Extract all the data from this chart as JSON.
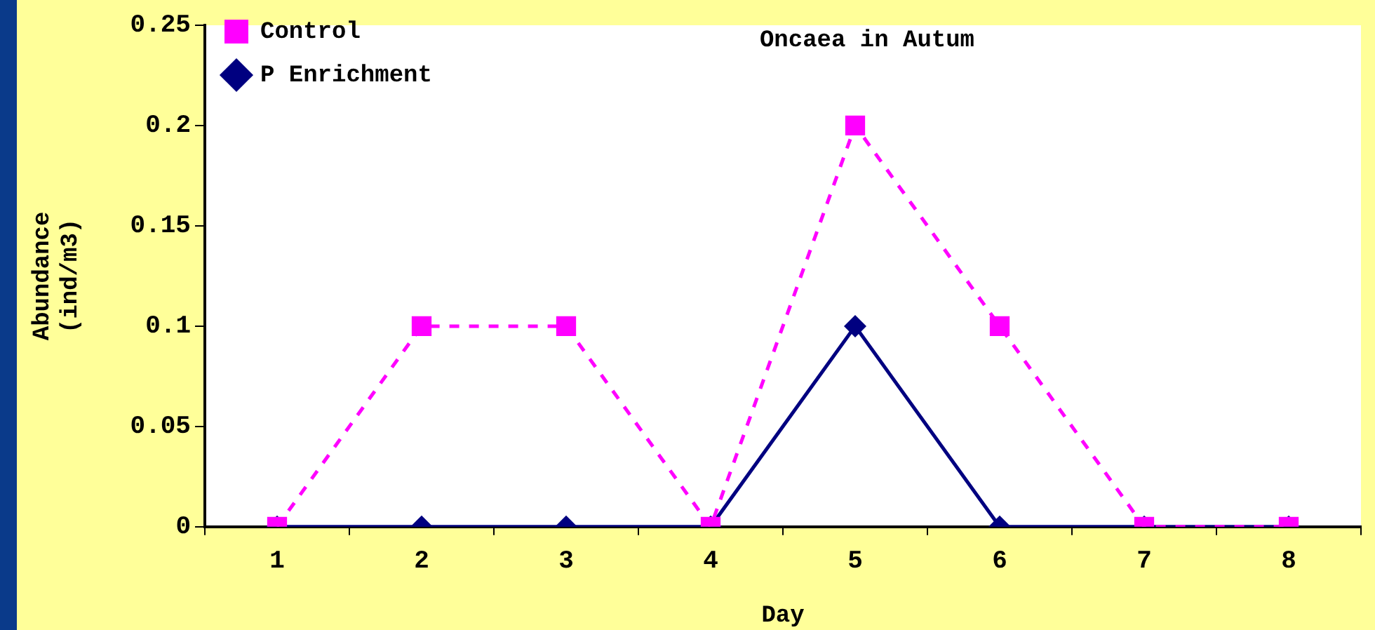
{
  "chart_data": {
    "type": "line",
    "title": "Oncaea in Autum",
    "xlabel": "Day",
    "ylabel": "Abundance (ind/m3)",
    "categories": [
      "1",
      "2",
      "3",
      "4",
      "5",
      "6",
      "7",
      "8"
    ],
    "series": [
      {
        "name": "P Enrichment",
        "color": "#000080",
        "values": [
          0,
          0,
          0,
          0,
          0.1,
          0,
          0,
          0
        ],
        "marker": "diamond",
        "line_style": "solid"
      },
      {
        "name": "Control",
        "color": "#ff00ff",
        "values": [
          0,
          0.1,
          0.1,
          0,
          0.2,
          0.1,
          0,
          0
        ],
        "marker": "square",
        "line_style": "dashed"
      }
    ],
    "ylim": [
      0,
      0.25
    ],
    "yticks": [
      0,
      0.05,
      0.1,
      0.15,
      0.2,
      0.25
    ],
    "grid": false,
    "legend": "top left"
  }
}
